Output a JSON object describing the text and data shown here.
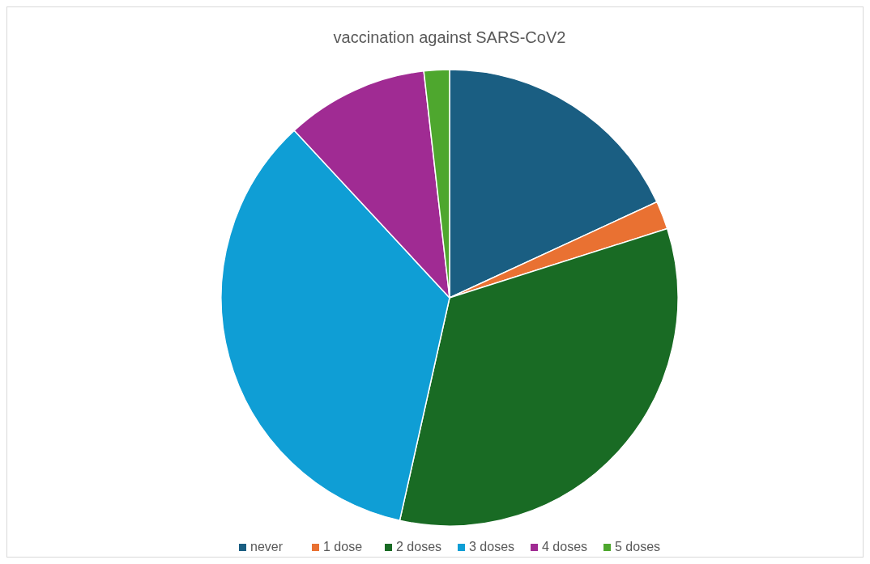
{
  "chart_data": {
    "type": "pie",
    "title": "vaccination against SARS-CoV2",
    "categories": [
      "never",
      "1 dose",
      "2 doses",
      "3 doses",
      "4 doses",
      "5 doses"
    ],
    "values": [
      18.1,
      2.0,
      33.4,
      34.6,
      10.1,
      1.8
    ],
    "colors": [
      "#1a5e82",
      "#e97132",
      "#196b24",
      "#0f9ed5",
      "#a02b93",
      "#4ea72e"
    ],
    "legend": "bottom"
  }
}
